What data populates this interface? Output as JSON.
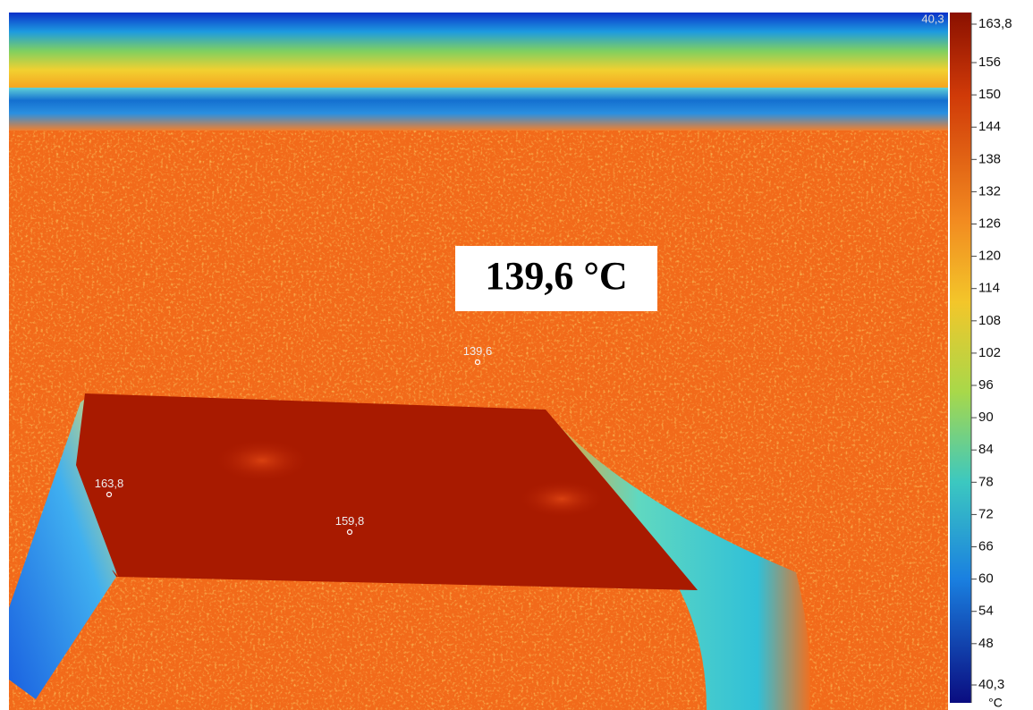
{
  "image": {
    "corner_label": "40,3",
    "annotation": "139,6 °C",
    "spots": [
      {
        "label": "139,6"
      },
      {
        "label": "163,8"
      },
      {
        "label": "159,8"
      }
    ]
  },
  "scale": {
    "ticks": [
      "163,8",
      "156",
      "150",
      "144",
      "138",
      "132",
      "126",
      "120",
      "114",
      "108",
      "102",
      "96",
      "90",
      "84",
      "78",
      "72",
      "66",
      "60",
      "54",
      "48",
      "40,3"
    ],
    "unit": "°C"
  }
}
